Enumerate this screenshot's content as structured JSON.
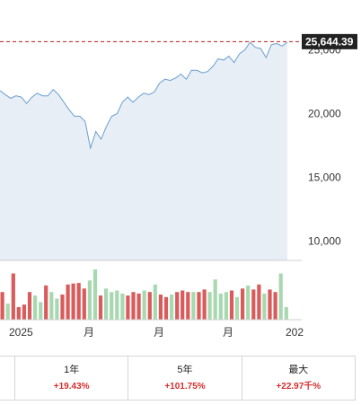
{
  "chart_data": {
    "type": "area",
    "title": "",
    "xlabel": "",
    "ylabel": "",
    "x_tick_labels": [
      "2025",
      "月",
      "月",
      "月",
      "202"
    ],
    "y_tick_labels": [
      "10,000",
      "15,000",
      "20,000",
      "25,000"
    ],
    "ylim": [
      8500,
      27500
    ],
    "last_value": 25644.39,
    "last_value_label": "25,644.39",
    "colors": {
      "line": "#6a9ed0",
      "fill": "#e7eef5",
      "reference": "#b71c1c",
      "tag": "#222222",
      "volume_up": "#a8d8b0",
      "volume_down": "#d95b5b"
    },
    "series": [
      {
        "values": [
          21800,
          21500,
          21200,
          21400,
          21300,
          20800,
          21300,
          21600,
          21400,
          21400,
          21900,
          21500,
          20900,
          20300,
          19800,
          19800,
          19400,
          17300,
          18600,
          18000,
          19000,
          19800,
          20000,
          20900,
          21300,
          20900,
          21300,
          21600,
          21500,
          21700,
          22400,
          22700,
          22600,
          22800,
          23100,
          22700,
          23400,
          23400,
          23200,
          23300,
          23700,
          24300,
          24200,
          24500,
          24000,
          24700,
          25000,
          25600,
          25200,
          25100,
          24400,
          25400,
          25500,
          25300,
          25600
        ]
      }
    ],
    "volume": [
      {
        "v": 0.55,
        "dir": "down"
      },
      {
        "v": 0.32,
        "dir": "up"
      },
      {
        "v": 0.92,
        "dir": "down"
      },
      {
        "v": 0.25,
        "dir": "down"
      },
      {
        "v": 0.3,
        "dir": "down"
      },
      {
        "v": 0.55,
        "dir": "down"
      },
      {
        "v": 0.48,
        "dir": "up"
      },
      {
        "v": 0.35,
        "dir": "up"
      },
      {
        "v": 0.68,
        "dir": "down"
      },
      {
        "v": 0.55,
        "dir": "up"
      },
      {
        "v": 0.42,
        "dir": "up"
      },
      {
        "v": 0.5,
        "dir": "down"
      },
      {
        "v": 0.7,
        "dir": "down"
      },
      {
        "v": 0.72,
        "dir": "down"
      },
      {
        "v": 0.73,
        "dir": "down"
      },
      {
        "v": 0.62,
        "dir": "down"
      },
      {
        "v": 0.78,
        "dir": "up"
      },
      {
        "v": 1.0,
        "dir": "up"
      },
      {
        "v": 0.48,
        "dir": "down"
      },
      {
        "v": 0.62,
        "dir": "up"
      },
      {
        "v": 0.55,
        "dir": "up"
      },
      {
        "v": 0.58,
        "dir": "up"
      },
      {
        "v": 0.52,
        "dir": "up"
      },
      {
        "v": 0.48,
        "dir": "down"
      },
      {
        "v": 0.55,
        "dir": "down"
      },
      {
        "v": 0.52,
        "dir": "down"
      },
      {
        "v": 0.58,
        "dir": "up"
      },
      {
        "v": 0.55,
        "dir": "down"
      },
      {
        "v": 0.7,
        "dir": "up"
      },
      {
        "v": 0.5,
        "dir": "down"
      },
      {
        "v": 0.45,
        "dir": "down"
      },
      {
        "v": 0.5,
        "dir": "up"
      },
      {
        "v": 0.55,
        "dir": "down"
      },
      {
        "v": 0.58,
        "dir": "down"
      },
      {
        "v": 0.55,
        "dir": "down"
      },
      {
        "v": 0.55,
        "dir": "up"
      },
      {
        "v": 0.55,
        "dir": "down"
      },
      {
        "v": 0.6,
        "dir": "down"
      },
      {
        "v": 0.55,
        "dir": "up"
      },
      {
        "v": 0.8,
        "dir": "up"
      },
      {
        "v": 0.52,
        "dir": "up"
      },
      {
        "v": 0.55,
        "dir": "up"
      },
      {
        "v": 0.58,
        "dir": "down"
      },
      {
        "v": 0.45,
        "dir": "up"
      },
      {
        "v": 0.62,
        "dir": "down"
      },
      {
        "v": 0.68,
        "dir": "up"
      },
      {
        "v": 0.6,
        "dir": "down"
      },
      {
        "v": 0.7,
        "dir": "down"
      },
      {
        "v": 0.52,
        "dir": "up"
      },
      {
        "v": 0.6,
        "dir": "down"
      },
      {
        "v": 0.55,
        "dir": "down"
      },
      {
        "v": 0.92,
        "dir": "up"
      },
      {
        "v": 0.25,
        "dir": "up"
      }
    ]
  },
  "periods": [
    {
      "label": "",
      "change": ""
    },
    {
      "label": "1年",
      "change": "+19.43%"
    },
    {
      "label": "5年",
      "change": "+101.75%"
    },
    {
      "label": "最大",
      "change": "+22.97千%"
    }
  ]
}
